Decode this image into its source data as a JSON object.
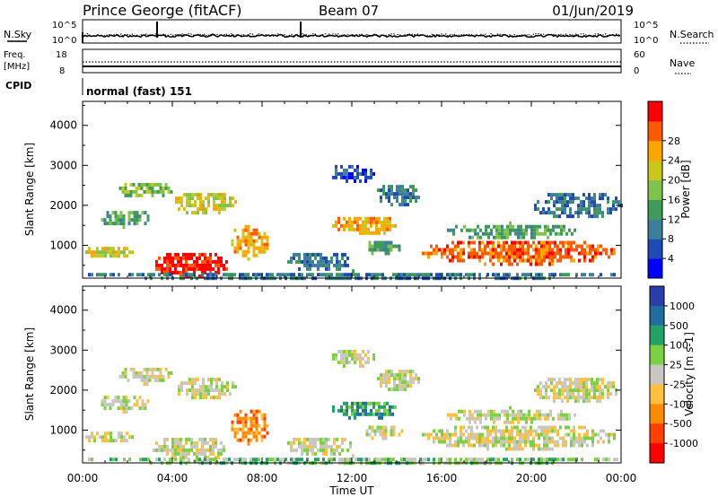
{
  "header": {
    "station": "Prince George (fitACF)",
    "beam": "Beam 07",
    "date": "01/Jun/2019"
  },
  "noise_panel": {
    "left_label": "N.Sky",
    "right_label": "N.Search",
    "left_top_tick": "10^5",
    "left_bottom_tick": "10^0",
    "right_top_tick": "10^5",
    "right_bottom_tick": "10^0"
  },
  "freq_panel": {
    "left_label_1": "Freq.",
    "left_label_2": "[MHz]",
    "left_top_tick": "18",
    "left_bottom_tick": "8",
    "right_label": "Nave",
    "right_top_tick": "60",
    "right_bottom_tick": "0"
  },
  "cpid_panel": {
    "label": "CPID",
    "program": "normal (fast) 151"
  },
  "chart_data": [
    {
      "type": "heatmap",
      "name": "power",
      "ylabel": "Slant Range [km]",
      "ylim": [
        180,
        4600
      ],
      "yticks": [
        1000,
        2000,
        3000,
        4000
      ],
      "xlim": [
        0,
        24
      ],
      "colorbar": {
        "label": "Power [dB]",
        "ticks": [
          "4",
          "8",
          "12",
          "16",
          "20",
          "24",
          "28"
        ],
        "colors": [
          "#0000ff",
          "#1f49b5",
          "#3d7f9a",
          "#3e9b59",
          "#7fc34c",
          "#c8c81a",
          "#ffa500",
          "#ff5a00",
          "#ff0000"
        ]
      },
      "regions": [
        {
          "t0": 0.0,
          "t1": 2.2,
          "r0": 700,
          "r1": 1050,
          "level": 5
        },
        {
          "t0": 0.7,
          "t1": 3.0,
          "r0": 1500,
          "r1": 1950,
          "level": 3
        },
        {
          "t0": 1.5,
          "t1": 4.0,
          "r0": 2200,
          "r1": 2650,
          "level": 4
        },
        {
          "t0": 3.0,
          "t1": 6.5,
          "r0": 250,
          "r1": 900,
          "level": 8
        },
        {
          "t0": 4.0,
          "t1": 6.8,
          "r0": 1800,
          "r1": 2400,
          "level": 5
        },
        {
          "t0": 6.5,
          "t1": 8.3,
          "r0": 700,
          "r1": 1600,
          "level": 6
        },
        {
          "t0": 9.0,
          "t1": 12.0,
          "r0": 400,
          "r1": 900,
          "level": 2
        },
        {
          "t0": 11.0,
          "t1": 14.0,
          "r0": 1300,
          "r1": 1800,
          "level": 6
        },
        {
          "t0": 12.5,
          "t1": 14.2,
          "r0": 800,
          "r1": 1200,
          "level": 3
        },
        {
          "t0": 13.0,
          "t1": 15.0,
          "r0": 2000,
          "r1": 2600,
          "level": 2
        },
        {
          "t0": 15.0,
          "t1": 23.8,
          "r0": 550,
          "r1": 1200,
          "level": 7
        },
        {
          "t0": 16.0,
          "t1": 22.0,
          "r0": 1200,
          "r1": 1600,
          "level": 3
        },
        {
          "t0": 20.0,
          "t1": 24.0,
          "r0": 1700,
          "r1": 2400,
          "level": 2
        },
        {
          "t0": 11.0,
          "t1": 13.0,
          "r0": 2600,
          "r1": 3100,
          "level": 1
        },
        {
          "t0": 0.0,
          "t1": 24.0,
          "r0": 180,
          "r1": 400,
          "level": 2
        }
      ]
    },
    {
      "type": "heatmap",
      "name": "velocity",
      "ylabel": "Slant Range [km]",
      "xlabel": "Time UT",
      "ylim": [
        180,
        4600
      ],
      "yticks": [
        1000,
        2000,
        3000,
        4000
      ],
      "xlim": [
        0,
        24
      ],
      "xticks": [
        "00:00",
        "04:00",
        "08:00",
        "12:00",
        "16:00",
        "20:00",
        "00:00"
      ],
      "colorbar": {
        "label": "Velocity [m s-1]",
        "ticks": [
          "1000",
          "500",
          "100",
          "25",
          "-25",
          "-100",
          "-500",
          "-1000"
        ],
        "colors": [
          "#2a3ea8",
          "#1f6e9e",
          "#21a266",
          "#7bd043",
          "#c8c8c0",
          "#ffc040",
          "#ff8c00",
          "#ff4000",
          "#ff0000"
        ]
      },
      "regions": [
        {
          "t0": 0.0,
          "t1": 2.2,
          "r0": 700,
          "r1": 1050,
          "level": 4
        },
        {
          "t0": 0.7,
          "t1": 3.0,
          "r0": 1500,
          "r1": 1950,
          "level": 4
        },
        {
          "t0": 1.5,
          "t1": 4.0,
          "r0": 2200,
          "r1": 2650,
          "level": 4
        },
        {
          "t0": 3.0,
          "t1": 6.5,
          "r0": 250,
          "r1": 900,
          "level": 4
        },
        {
          "t0": 4.0,
          "t1": 6.8,
          "r0": 1800,
          "r1": 2400,
          "level": 4
        },
        {
          "t0": 6.5,
          "t1": 8.3,
          "r0": 700,
          "r1": 1600,
          "level": 6
        },
        {
          "t0": 9.0,
          "t1": 12.0,
          "r0": 400,
          "r1": 900,
          "level": 4
        },
        {
          "t0": 11.0,
          "t1": 14.0,
          "r0": 1300,
          "r1": 1800,
          "level": 2
        },
        {
          "t0": 12.5,
          "t1": 14.2,
          "r0": 800,
          "r1": 1200,
          "level": 4
        },
        {
          "t0": 13.0,
          "t1": 15.0,
          "r0": 2000,
          "r1": 2600,
          "level": 4
        },
        {
          "t0": 15.0,
          "t1": 23.8,
          "r0": 550,
          "r1": 1200,
          "level": 4
        },
        {
          "t0": 16.0,
          "t1": 22.0,
          "r0": 1200,
          "r1": 1600,
          "level": 4
        },
        {
          "t0": 20.0,
          "t1": 24.0,
          "r0": 1700,
          "r1": 2400,
          "level": 4
        },
        {
          "t0": 11.0,
          "t1": 13.0,
          "r0": 2600,
          "r1": 3100,
          "level": 4
        },
        {
          "t0": 0.0,
          "t1": 24.0,
          "r0": 180,
          "r1": 400,
          "level": 3
        }
      ]
    }
  ]
}
